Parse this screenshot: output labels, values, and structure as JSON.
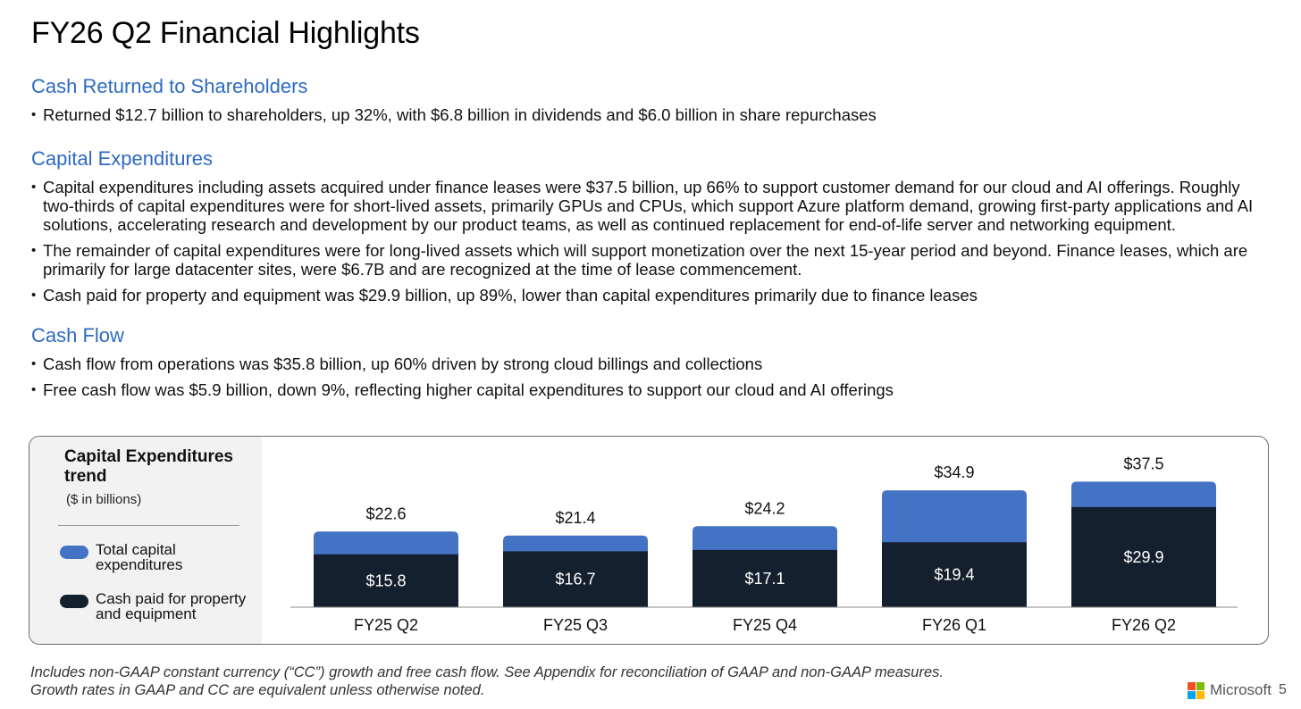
{
  "page": {
    "title": "FY26 Q2 Financial Highlights",
    "brand": "Microsoft",
    "page_number": "5"
  },
  "sections": {
    "cash_returned": {
      "heading": "Cash Returned to Shareholders",
      "bullets": [
        "Returned $12.7 billion to shareholders, up 32%, with $6.8 billion in dividends and $6.0 billion in share repurchases"
      ]
    },
    "capex": {
      "heading": "Capital Expenditures",
      "bullets": [
        "Capital expenditures including assets acquired under finance leases were $37.5 billion, up 66% to support customer demand for our cloud and AI offerings. Roughly two-thirds of capital expenditures were for short-lived assets, primarily GPUs and CPUs, which support Azure platform demand, growing first-party applications and AI solutions, accelerating research and development by our product teams, as well as continued replacement for end-of-life server and networking equipment.",
        "The remainder of capital expenditures were for long-lived assets which will support monetization over the next 15-year period and beyond. Finance leases, which are primarily for large datacenter sites, were $6.7B and are recognized at the time of lease commencement.",
        "Cash paid for property and equipment was $29.9 billion, up 89%, lower than capital expenditures primarily due to finance leases"
      ]
    },
    "cash_flow": {
      "heading": "Cash Flow",
      "bullets": [
        "Cash flow from operations was $35.8 billion, up 60% driven by strong cloud billings and collections",
        "Free cash flow was $5.9 billion, down 9%, reflecting higher capital expenditures to support our cloud and AI offerings"
      ]
    }
  },
  "footnote": {
    "line1": "Includes non-GAAP constant currency (“CC”) growth and free cash flow. See Appendix for reconciliation of GAAP and non-GAAP measures.",
    "line2": "Growth rates in GAAP and CC are equivalent unless otherwise noted."
  },
  "colors": {
    "accent": "#2e6bc0",
    "total_capex": "#4472c4",
    "cash_paid": "#14202e"
  },
  "chart_data": {
    "type": "bar",
    "stacking": "overlay",
    "title": "Capital Expenditures trend",
    "subtitle": "($ in billions)",
    "categories": [
      "FY25 Q2",
      "FY25 Q3",
      "FY25 Q4",
      "FY26 Q1",
      "FY26 Q2"
    ],
    "series": [
      {
        "name": "Total capital expenditures",
        "legend_line1": "Total capital",
        "legend_line2": "expenditures",
        "values": [
          22.6,
          21.4,
          24.2,
          34.9,
          37.5
        ],
        "labels": [
          "$22.6",
          "$21.4",
          "$24.2",
          "$34.9",
          "$37.5"
        ]
      },
      {
        "name": "Cash paid for property and equipment",
        "legend_line1": "Cash paid for property",
        "legend_line2": "and equipment",
        "values": [
          15.8,
          16.7,
          17.1,
          19.4,
          29.9
        ],
        "labels": [
          "$15.8",
          "$16.7",
          "$17.1",
          "$19.4",
          "$29.9"
        ]
      }
    ],
    "ylim": [
      0,
      40
    ],
    "grid": false,
    "legend": "left"
  }
}
